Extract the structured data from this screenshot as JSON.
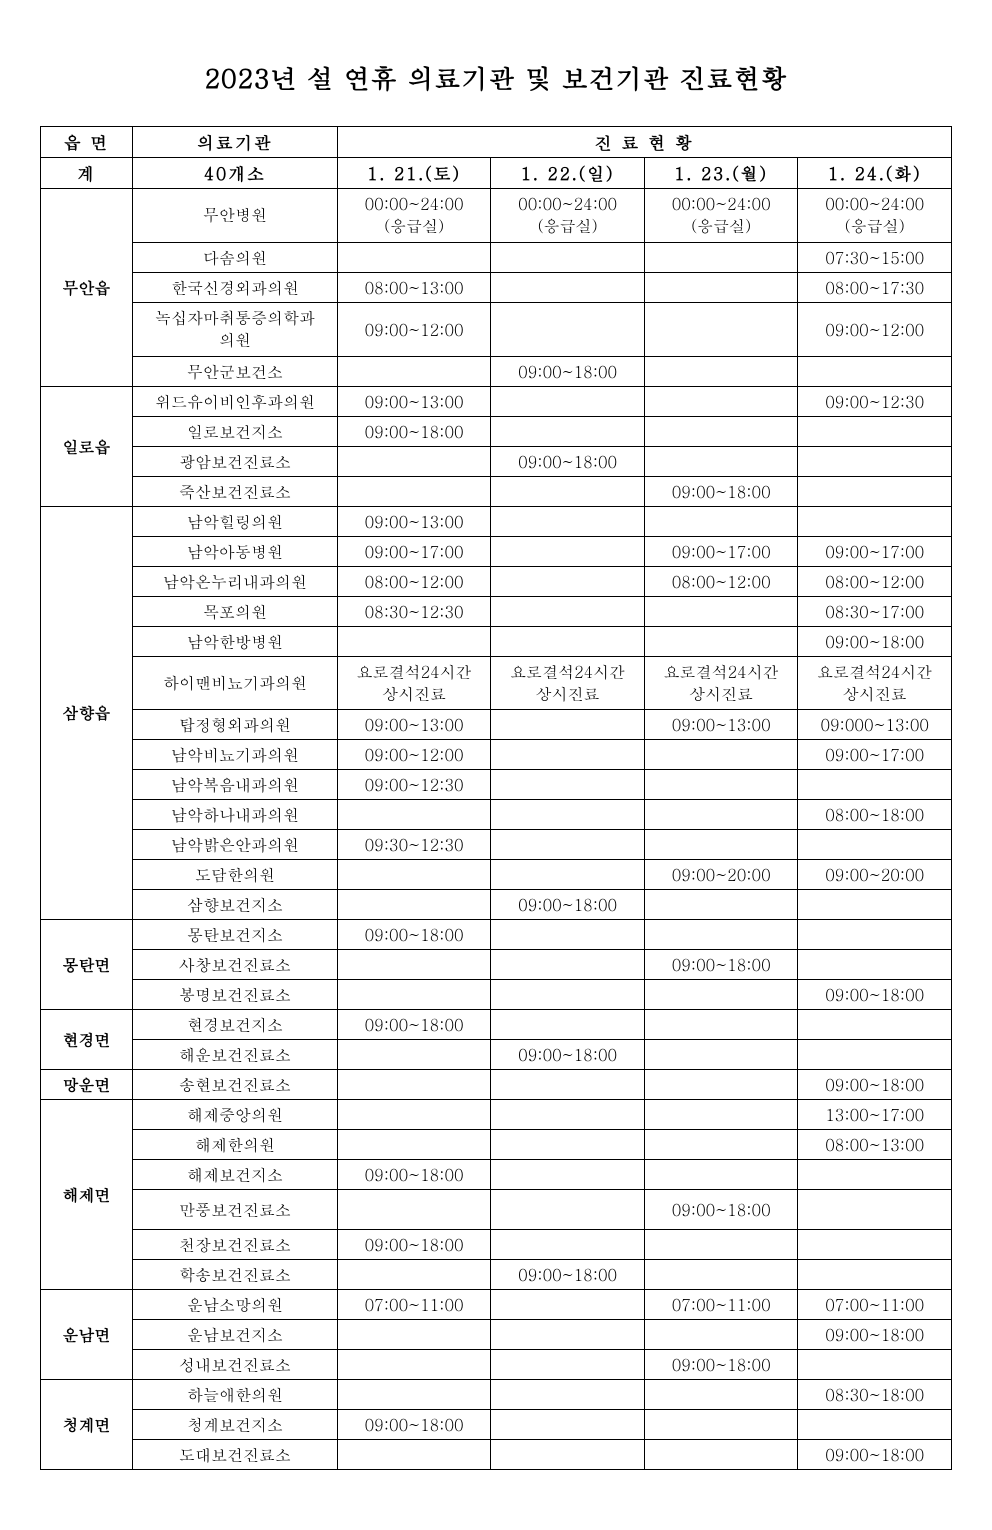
{
  "title": "2023년 설 연휴 의료기관 및 보건기관 진료현황",
  "headers": {
    "region": "읍 면",
    "institution": "의료기관",
    "status": "진 료 현 황",
    "total_region": "계",
    "total_inst": "40개소",
    "d1": "1. 21.(토)",
    "d2": "1. 22.(일)",
    "d3": "1. 23.(월)",
    "d4": "1. 24.(화)"
  },
  "er24_t": "00:00~24:00",
  "er24_b": "(응급실)",
  "stone_t": "요로결석24시간",
  "stone_b": "상시진료",
  "regions": {
    "muan": "무안읍",
    "illo": "일로읍",
    "samhyang": "삼향읍",
    "mongtan": "몽탄면",
    "hyeongyeong": "현경면",
    "mangun": "망운면",
    "haeje": "해제면",
    "unnam": "운남면",
    "cheonggye": "청계면"
  },
  "inst": {
    "muan_hosp": "무안병원",
    "dasom": "다솜의원",
    "hanguk": "한국신경외과의원",
    "noksipja_l1": "녹십자마취통증의학과",
    "noksipja_l2": "의원",
    "muan_ctr": "무안군보건소",
    "widu": "위드유이비인후과의원",
    "illo_ctr": "일로보건지소",
    "gwangam": "광암보건진료소",
    "juksan": "죽산보건진료소",
    "namak_heal": "남악힐링의원",
    "namak_child": "남악아동병원",
    "namak_onuri": "남악온누리내과의원",
    "mokpo": "목포의원",
    "namak_hanbang": "남악한방병원",
    "himen": "하이맨비뇨기과의원",
    "tapjeong": "탑정형외과의원",
    "namak_uro": "남악비뇨기과의원",
    "namak_bokeum": "남악복음내과의원",
    "namak_hana": "남악하나내과의원",
    "namak_bright": "남악밝은안과의원",
    "dodam": "도담한의원",
    "samhyang_ctr": "삼향보건지소",
    "mongtan_ctr": "몽탄보건지소",
    "sachang": "사창보건진료소",
    "bongmyeong": "봉명보건진료소",
    "hyeongyeong_ctr": "현경보건지소",
    "haeun": "해운보건진료소",
    "songhyeon": "송현보건진료소",
    "haeje_central": "해제중앙의원",
    "haeje_han": "해제한의원",
    "haeje_ctr": "해제보건지소",
    "manpung": "만풍보건진료소",
    "cheonjang": "천장보건진료소",
    "haksong": "학송보건진료소",
    "unnam_somang": "운남소망의원",
    "unnam_ctr": "운남보건지소",
    "seongnae": "성내보건진료소",
    "haneulae": "하늘애한의원",
    "cheonggye_ctr": "청계보건지소",
    "dodae": "도대보건진료소"
  },
  "times": {
    "t0730_1500": "07:30~15:00",
    "t0800_1300": "08:00~13:00",
    "t0800_1730": "08:00~17:30",
    "t0900_1200": "09:00~12:00",
    "t0900_1800": "09:00~18:00",
    "t0900_1300": "09:00~13:00",
    "t0900_1230": "09:00~12:30",
    "t0900_1700": "09:00~17:00",
    "t0800_1200": "08:00~12:00",
    "t0830_1230": "08:30~12:30",
    "t0830_1700": "08:30~17:00",
    "t09000_1300": "09:000~13:00",
    "t0930_1230": "09:30~12:30",
    "t0800_1800": "08:00~18:00",
    "t0900_2000": "09:00~20:00",
    "t1300_1700": "13:00~17:00",
    "t0800_1300b": "08:00~13:00",
    "t0700_1100": "07:00~11:00",
    "t0830_1800": "08:30~18:00"
  }
}
